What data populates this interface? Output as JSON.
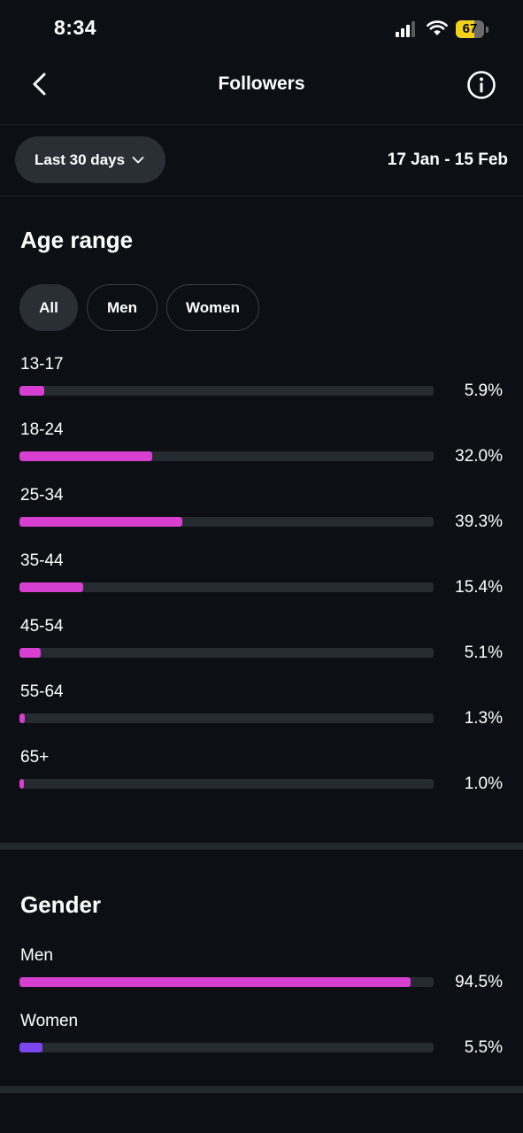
{
  "status_bar": {
    "time": "8:34",
    "battery": "67",
    "battery_level": 0.67,
    "icons": [
      "signal-icon",
      "wifi-icon",
      "battery-icon"
    ]
  },
  "header": {
    "title": "Followers",
    "back_icon": "chevron-left-icon",
    "info_icon": "info-icon"
  },
  "filter": {
    "period_label": "Last 30 days",
    "date_range": "17 Jan - 15 Feb"
  },
  "age_range": {
    "title": "Age range",
    "tabs": [
      {
        "label": "All",
        "active": true
      },
      {
        "label": "Men",
        "active": false
      },
      {
        "label": "Women",
        "active": false
      }
    ],
    "rows": [
      {
        "label": "13-17",
        "value": "5.9%",
        "fraction": 0.059
      },
      {
        "label": "18-24",
        "value": "32.0%",
        "fraction": 0.32
      },
      {
        "label": "25-34",
        "value": "39.3%",
        "fraction": 0.393
      },
      {
        "label": "35-44",
        "value": "15.4%",
        "fraction": 0.154
      },
      {
        "label": "45-54",
        "value": "5.1%",
        "fraction": 0.051
      },
      {
        "label": "55-64",
        "value": "1.3%",
        "fraction": 0.013
      },
      {
        "label": "65+",
        "value": "1.0%",
        "fraction": 0.01
      }
    ]
  },
  "gender": {
    "title": "Gender",
    "rows": [
      {
        "label": "Men",
        "value": "94.5%",
        "fraction": 0.945
      },
      {
        "label": "Women",
        "value": "5.5%",
        "fraction": 0.055
      }
    ]
  },
  "colors": {
    "background": "#0c0f14",
    "accent_pink": "#d63fcf",
    "accent_purple": "#7b45f0",
    "track": "#262a31"
  }
}
